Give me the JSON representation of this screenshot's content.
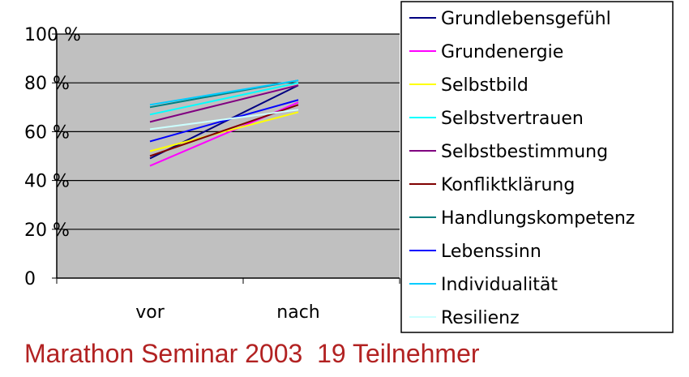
{
  "chart_data": {
    "type": "line",
    "categories": [
      "vor",
      "nach"
    ],
    "yticks": [
      "0",
      "20 %",
      "40 %",
      "60 %",
      "80 %",
      "100 %"
    ],
    "ylim": [
      0,
      100
    ],
    "grid": true,
    "legend_position": "right",
    "series": [
      {
        "name": "Grundlebensgefühl",
        "values": [
          49,
          79
        ],
        "color": "#000080"
      },
      {
        "name": "Grundenergie",
        "values": [
          46,
          72
        ],
        "color": "#ff00ff"
      },
      {
        "name": "Selbstbild",
        "values": [
          52,
          68
        ],
        "color": "#ffff00"
      },
      {
        "name": "Selbstvertrauen",
        "values": [
          67,
          80
        ],
        "color": "#00ffff"
      },
      {
        "name": "Selbstbestimmung",
        "values": [
          64,
          79
        ],
        "color": "#800080"
      },
      {
        "name": "Konfliktklärung",
        "values": [
          50,
          71
        ],
        "color": "#800000"
      },
      {
        "name": "Handlungskompetenz",
        "values": [
          70,
          81
        ],
        "color": "#008080"
      },
      {
        "name": "Lebenssinn",
        "values": [
          56,
          73
        ],
        "color": "#0000ff"
      },
      {
        "name": "Individualität",
        "values": [
          71,
          81
        ],
        "color": "#00ccff"
      },
      {
        "name": "Resilienz",
        "values": [
          61,
          69
        ],
        "color": "#ccffff"
      }
    ]
  },
  "caption": "Marathon Seminar 2003  19 Teilnehmer"
}
